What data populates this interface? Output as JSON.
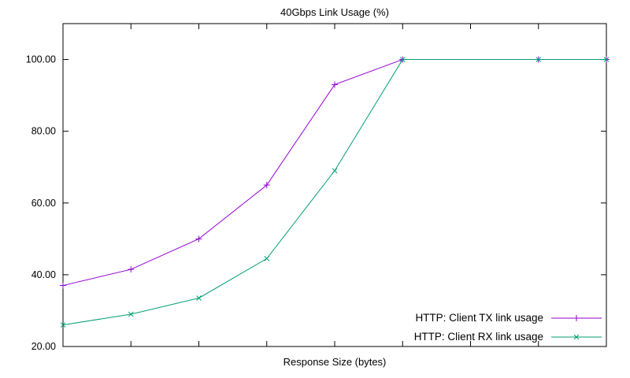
{
  "chart_data": {
    "type": "line",
    "title": "40Gbps Link Usage (%)",
    "xlabel": "Response Size (bytes)",
    "ylabel": "",
    "x": [
      0,
      1,
      2,
      3,
      4,
      5,
      7,
      8
    ],
    "series": [
      {
        "name": "HTTP: Client TX link usage",
        "color": "#9400d3",
        "marker": "plus",
        "values": [
          37,
          41.5,
          50,
          65,
          93,
          100,
          100,
          100
        ]
      },
      {
        "name": "HTTP: Client RX link usage",
        "color": "#009e73",
        "marker": "cross",
        "values": [
          26,
          29,
          33.5,
          44.5,
          69,
          100,
          100,
          100
        ]
      }
    ],
    "xlim": [
      0,
      8
    ],
    "ylim": [
      20,
      110
    ],
    "yticks": [
      20,
      40,
      60,
      80,
      100
    ],
    "ytick_labels": [
      "20.00",
      "40.00",
      "60.00",
      "80.00",
      "100.00"
    ],
    "xticks": [
      0,
      1,
      2,
      3,
      4,
      5,
      6,
      7,
      8
    ],
    "legend_position": "bottom-right",
    "grid": false,
    "axis_color": "#000000",
    "text_color": "#000000"
  }
}
